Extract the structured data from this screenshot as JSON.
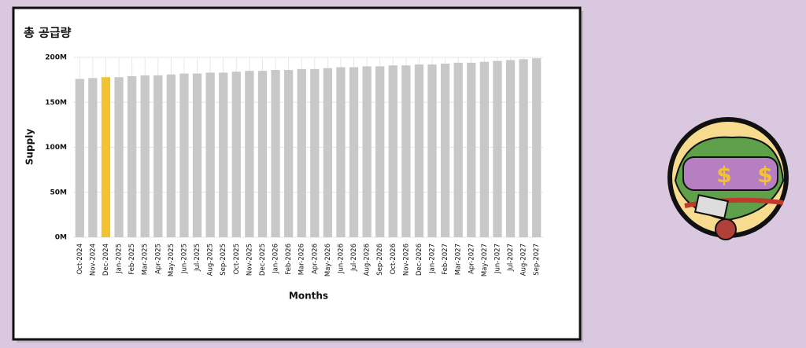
{
  "chart_data": {
    "type": "bar",
    "title": "총 공급량",
    "x_label": "Months",
    "y_label": "Supply",
    "categories": [
      "Oct-2024",
      "Nov-2024",
      "Dec-2024",
      "Jan-2025",
      "Feb-2025",
      "Mar-2025",
      "Apr-2025",
      "May-2025",
      "Jun-2025",
      "Jul-2025",
      "Aug-2025",
      "Sep-2025",
      "Oct-2025",
      "Nov-2025",
      "Dec-2025",
      "Jan-2026",
      "Feb-2026",
      "Mar-2026",
      "Apr-2026",
      "May-2026",
      "Jun-2026",
      "Jul-2026",
      "Aug-2026",
      "Sep-2026",
      "Oct-2026",
      "Nov-2026",
      "Dec-2026",
      "Jan-2027",
      "Feb-2027",
      "Mar-2027",
      "Apr-2027",
      "May-2027",
      "Jun-2027",
      "Jul-2027",
      "Aug-2027",
      "Sep-2027"
    ],
    "values": [
      176,
      177,
      178,
      178,
      179,
      180,
      180,
      181,
      182,
      182,
      183,
      183,
      184,
      185,
      185,
      186,
      186,
      187,
      187,
      188,
      189,
      189,
      190,
      190,
      191,
      191,
      192,
      192,
      193,
      194,
      194,
      195,
      196,
      197,
      198,
      199
    ],
    "color": "#c8c8c8",
    "highlight": {
      "index": 2,
      "color": "#f2c232"
    },
    "ylim": [
      0,
      200
    ],
    "yticks": [
      {
        "value": 0,
        "label": "0M"
      },
      {
        "value": 50,
        "label": "50M"
      },
      {
        "value": 100,
        "label": "100M"
      },
      {
        "value": 150,
        "label": "150M"
      },
      {
        "value": 200,
        "label": "200M"
      }
    ],
    "grid": true
  }
}
